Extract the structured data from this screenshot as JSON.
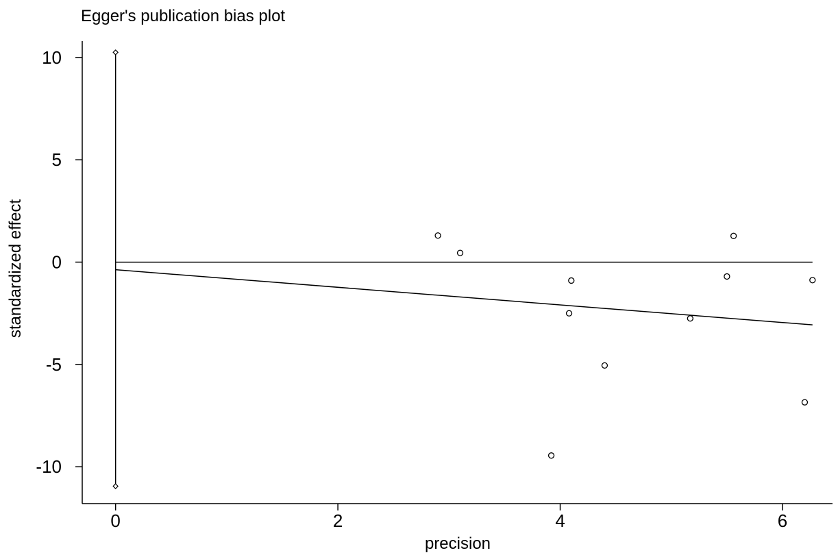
{
  "chart_data": {
    "type": "scatter",
    "title": "Egger's publication bias plot",
    "xlabel": "precision",
    "ylabel": "standardized effect",
    "xlim": [
      -0.3,
      6.45
    ],
    "ylim": [
      -11.8,
      10.8
    ],
    "xticks": [
      0,
      2,
      4,
      6
    ],
    "yticks": [
      10,
      5,
      0,
      -5,
      -10
    ],
    "grid": false,
    "legend": "none",
    "points": [
      {
        "x": 2.9,
        "y": 1.3
      },
      {
        "x": 3.1,
        "y": 0.45
      },
      {
        "x": 4.1,
        "y": -0.9
      },
      {
        "x": 4.08,
        "y": -2.5
      },
      {
        "x": 4.4,
        "y": -5.05
      },
      {
        "x": 3.92,
        "y": -9.45
      },
      {
        "x": 5.17,
        "y": -2.75
      },
      {
        "x": 5.5,
        "y": -0.7
      },
      {
        "x": 5.56,
        "y": 1.28
      },
      {
        "x": 6.2,
        "y": -6.85
      },
      {
        "x": 6.27,
        "y": -0.88
      }
    ],
    "intercept_ci": {
      "x": 0,
      "lower": -10.95,
      "upper": 10.25
    },
    "reference_line": {
      "y": 0,
      "x_range": [
        0,
        6.27
      ]
    },
    "regression_line": {
      "intercept": -0.37,
      "slope": -0.43,
      "x_range": [
        0,
        6.27
      ]
    }
  }
}
